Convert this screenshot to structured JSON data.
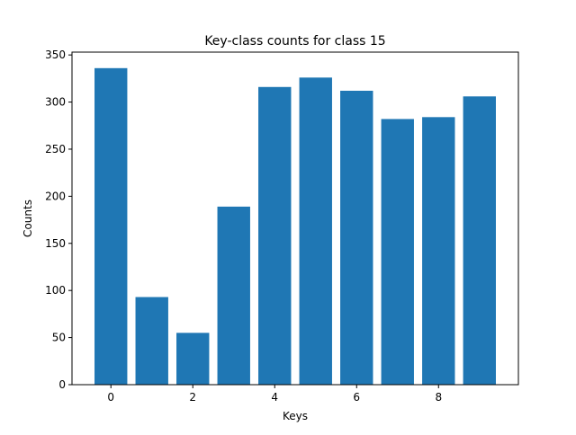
{
  "chart_data": {
    "type": "bar",
    "title": "Key-class counts for class 15",
    "xlabel": "Keys",
    "ylabel": "Counts",
    "categories": [
      0,
      1,
      2,
      3,
      4,
      5,
      6,
      7,
      8,
      9
    ],
    "values": [
      336,
      93,
      55,
      189,
      316,
      326,
      312,
      282,
      284,
      306
    ],
    "xlim": [
      -0.95,
      9.95
    ],
    "ylim": [
      0,
      353
    ],
    "xticks": [
      0,
      2,
      4,
      6,
      8
    ],
    "yticks": [
      0,
      50,
      100,
      150,
      200,
      250,
      300,
      350
    ],
    "bar_color": "#1f77b4",
    "grid": false,
    "legend": "none"
  }
}
